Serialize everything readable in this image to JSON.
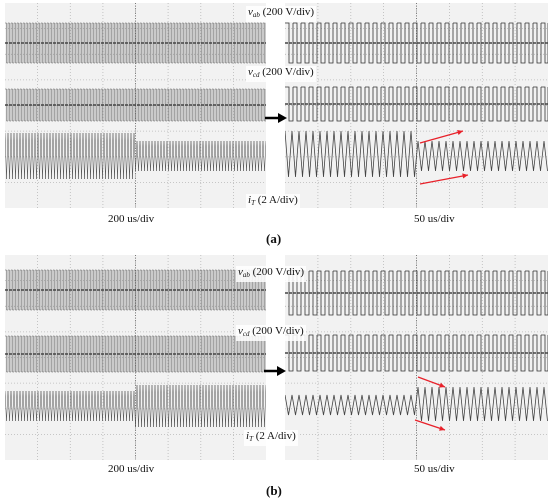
{
  "chart_data": [
    {
      "type": "oscilloscope",
      "panel": "(a)",
      "panel_label": "(a)",
      "left_timebase": "200 us/div",
      "right_timebase": "50 us/div",
      "traces": [
        {
          "symbol": "v",
          "subscript": "ab",
          "scale": "(200 V/div)"
        },
        {
          "symbol": "v",
          "subscript": "cd",
          "scale": "(200 V/div)"
        },
        {
          "symbol": "i",
          "subscript": "T",
          "scale": "(2 A/div)"
        }
      ],
      "current_transition": "amplitude decreases after the step (left); envelope shifts up/down (right)",
      "arrow_color": "#e8212a"
    },
    {
      "type": "oscilloscope",
      "panel": "(b)",
      "panel_label": "(b)",
      "left_timebase": "200 us/div",
      "right_timebase": "50 us/div",
      "traces": [
        {
          "symbol": "v",
          "subscript": "ab",
          "scale": "(200 V/div)"
        },
        {
          "symbol": "v",
          "subscript": "cd",
          "scale": "(200 V/div)"
        },
        {
          "symbol": "i",
          "subscript": "T",
          "scale": "(2 A/div)"
        }
      ],
      "arrow_color": "#e8212a"
    }
  ]
}
